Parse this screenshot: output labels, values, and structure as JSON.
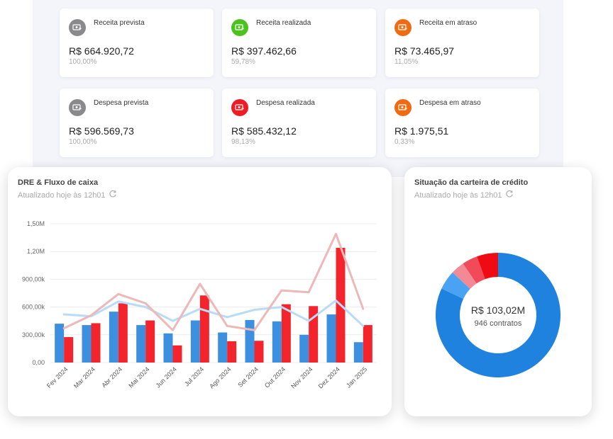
{
  "colors": {
    "gray": "#8a8a8e",
    "green": "#4cc11f",
    "orange": "#ef6b12",
    "red": "#ee1c24",
    "blue_bar": "#3d8fe0",
    "red_bar": "#f4242c",
    "blue_line": "#b8dbf7",
    "red_line": "#ecb8b8"
  },
  "cards": [
    {
      "label": "Receita prevista",
      "value": "R$ 664.920,72",
      "pct": "100,00%",
      "icon": "money-in-icon",
      "color": "#8a8a8e"
    },
    {
      "label": "Receita realizada",
      "value": "R$ 397.462,66",
      "pct": "59,78%",
      "icon": "money-in-icon",
      "color": "#4cc11f"
    },
    {
      "label": "Receita em atraso",
      "value": "R$ 73.465,97",
      "pct": "11,05%",
      "icon": "money-in-icon",
      "color": "#ef6b12"
    },
    {
      "label": "Despesa prevista",
      "value": "R$ 596.569,73",
      "pct": "100,00%",
      "icon": "money-out-icon",
      "color": "#8a8a8e"
    },
    {
      "label": "Despesa realizada",
      "value": "R$ 585.432,12",
      "pct": "98,13%",
      "icon": "money-out-icon",
      "color": "#ee1c24"
    },
    {
      "label": "Despesa em atraso",
      "value": "R$ 1.975,51",
      "pct": "0,33%",
      "icon": "money-out-icon",
      "color": "#ef6b12"
    }
  ],
  "dre": {
    "title": "DRE & Fluxo de caixa",
    "updated": "Atualizado hoje às 12h01"
  },
  "credit": {
    "title": "Situação da carteira de crédito",
    "updated": "Atualizado hoje às 12h01",
    "center_value": "R$ 103,02M",
    "center_sub": "946 contratos"
  },
  "chart_data": [
    {
      "type": "bar",
      "title": "DRE & Fluxo de caixa",
      "categories": [
        "Fev 2024",
        "Mar 2024",
        "Abr 2024",
        "Mai 2024",
        "Jun 2024",
        "Jul 2024",
        "Ago 2024",
        "Set 2024",
        "Out 2024",
        "Nov 2024",
        "Dez 2024",
        "Jan 2025"
      ],
      "y_ticks": [
        "0,00",
        "300,00k",
        "600,00k",
        "900,00k",
        "1,20M",
        "1,50M"
      ],
      "ylim": [
        0,
        1500000
      ],
      "grid": true,
      "series": [
        {
          "kind": "bar",
          "color": "#3d8fe0",
          "values": [
            420000,
            405000,
            550000,
            405000,
            315000,
            455000,
            325000,
            460000,
            445000,
            300000,
            520000,
            220000
          ]
        },
        {
          "kind": "bar",
          "color": "#f4242c",
          "values": [
            275000,
            425000,
            640000,
            455000,
            185000,
            725000,
            230000,
            235000,
            630000,
            610000,
            1240000,
            405000
          ]
        },
        {
          "kind": "line",
          "color": "#b8dbf7",
          "values": [
            520000,
            500000,
            660000,
            600000,
            450000,
            580000,
            490000,
            570000,
            600000,
            450000,
            670000,
            395000
          ]
        },
        {
          "kind": "line",
          "color": "#ecb8b8",
          "values": [
            370000,
            510000,
            740000,
            640000,
            350000,
            850000,
            395000,
            350000,
            780000,
            760000,
            1390000,
            580000
          ]
        }
      ]
    },
    {
      "type": "pie",
      "title": "Situação da carteira de crédito",
      "center_value": "R$ 103,02M",
      "center_sub": "946 contratos",
      "slices": [
        {
          "value": 82,
          "color": "#1f82de"
        },
        {
          "value": 5,
          "color": "#4aa3f2"
        },
        {
          "value": 3.5,
          "color": "#f28a95"
        },
        {
          "value": 4,
          "color": "#f14a58"
        },
        {
          "value": 5.5,
          "color": "#ee0b14"
        }
      ]
    }
  ]
}
